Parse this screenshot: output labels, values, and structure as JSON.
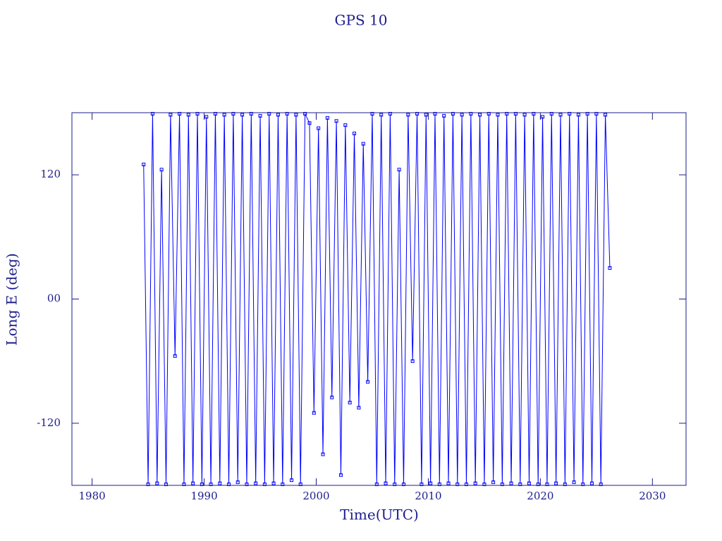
{
  "chart_data": {
    "type": "line",
    "title": "GPS 10",
    "x_label": "Time(UTC)",
    "y_label": "Long E (deg)",
    "xlim": [
      1978.2,
      2033
    ],
    "xticks": [
      1980,
      1990,
      2000,
      2010,
      2020,
      2030
    ],
    "ylim": [
      -180,
      180
    ],
    "yticks": [
      -120,
      {
        "value": 0,
        "label": "00"
      },
      120
    ],
    "color": "#0000ff",
    "x": [
      1984.6,
      1985.0,
      1985.4,
      1985.8,
      1986.2,
      1986.6,
      1987.0,
      1987.4,
      1987.8,
      1988.2,
      1988.6,
      1989.0,
      1989.4,
      1989.8,
      1990.2,
      1990.6,
      1991.0,
      1991.4,
      1991.8,
      1992.2,
      1992.6,
      1993.0,
      1993.4,
      1993.8,
      1994.2,
      1994.6,
      1995.0,
      1995.4,
      1995.8,
      1996.2,
      1996.6,
      1997.0,
      1997.4,
      1997.8,
      1998.2,
      1998.6,
      1999.0,
      1999.4,
      1999.8,
      2000.2,
      2000.6,
      2001.0,
      2001.4,
      2001.8,
      2002.2,
      2002.6,
      2003.0,
      2003.4,
      2003.8,
      2004.2,
      2004.6,
      2005.0,
      2005.4,
      2005.8,
      2006.2,
      2006.6,
      2007.0,
      2007.4,
      2007.8,
      2008.2,
      2008.6,
      2009.0,
      2009.4,
      2009.8,
      2010.2,
      2010.6,
      2011.0,
      2011.4,
      2011.8,
      2012.2,
      2012.6,
      2013.0,
      2013.4,
      2013.8,
      2014.2,
      2014.6,
      2015.0,
      2015.4,
      2015.8,
      2016.2,
      2016.6,
      2017.0,
      2017.4,
      2017.8,
      2018.2,
      2018.6,
      2019.0,
      2019.4,
      2019.8,
      2020.2,
      2020.6,
      2021.0,
      2021.4,
      2021.8,
      2022.2,
      2022.6,
      2023.0,
      2023.4,
      2023.8,
      2024.2,
      2024.6,
      2025.0,
      2025.4,
      2025.8,
      2026.2
    ],
    "values": [
      130,
      -179,
      179,
      -178,
      125,
      -179,
      178,
      -55,
      179,
      -179,
      178,
      -178,
      179,
      -179,
      176,
      -179,
      179,
      -178,
      178,
      -179,
      179,
      -177,
      178,
      -179,
      179,
      -178,
      177,
      -179,
      179,
      -178,
      178,
      -179,
      179,
      -175,
      178,
      -179,
      179,
      170,
      -110,
      165,
      -150,
      175,
      -95,
      172,
      -170,
      168,
      -100,
      160,
      -105,
      150,
      -80,
      179,
      -179,
      178,
      -178,
      179,
      -179,
      125,
      -179,
      178,
      -60,
      179,
      -179,
      178,
      -178,
      179,
      -179,
      177,
      -178,
      179,
      -179,
      178,
      -179,
      179,
      -178,
      178,
      -179,
      179,
      -177,
      178,
      -179,
      179,
      -178,
      179,
      -179,
      178,
      -178,
      179,
      -179,
      176,
      -179,
      179,
      -178,
      178,
      -179,
      179,
      -177,
      178,
      -179,
      179,
      -178,
      179,
      -179,
      178,
      30
    ]
  }
}
